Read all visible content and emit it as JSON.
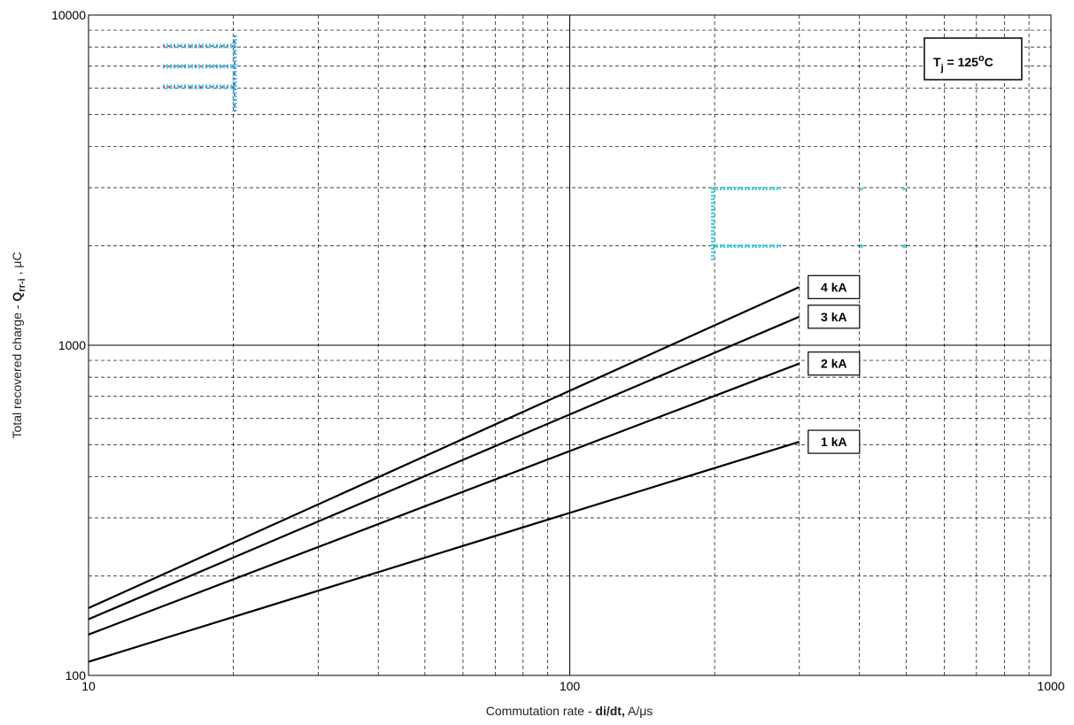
{
  "chart_data": {
    "type": "line",
    "x_scale": "log",
    "y_scale": "log",
    "xlim": [
      10,
      1000
    ],
    "ylim": [
      100,
      10000
    ],
    "grid": true,
    "xlabel_pre": "Commutation rate - ",
    "xlabel_bold": "di/dt,",
    "xlabel_post": " A/μs",
    "ylabel_pre": "Total recovered charge - ",
    "ylabel_bold_q": "Q",
    "ylabel_bold_sub": "rr-i",
    "ylabel_post": " , μC",
    "x_ticks": [
      "10",
      "100",
      "1000"
    ],
    "y_ticks": [
      "100",
      "1000",
      "10000"
    ],
    "annotation": {
      "t": "T",
      "sub": "j",
      "eq": " = 125",
      "deg": "o",
      "unit": "C"
    },
    "series": [
      {
        "name": "4 kA",
        "x": [
          10,
          300
        ],
        "y": [
          160,
          1500
        ]
      },
      {
        "name": "3 kA",
        "x": [
          10,
          300
        ],
        "y": [
          148,
          1220
        ]
      },
      {
        "name": "2 kA",
        "x": [
          10,
          300
        ],
        "y": [
          133,
          880
        ]
      },
      {
        "name": "1 kA",
        "x": [
          10,
          300
        ],
        "y": [
          110,
          510
        ]
      }
    ],
    "legend_placement": "series labels at line ends (right)"
  }
}
